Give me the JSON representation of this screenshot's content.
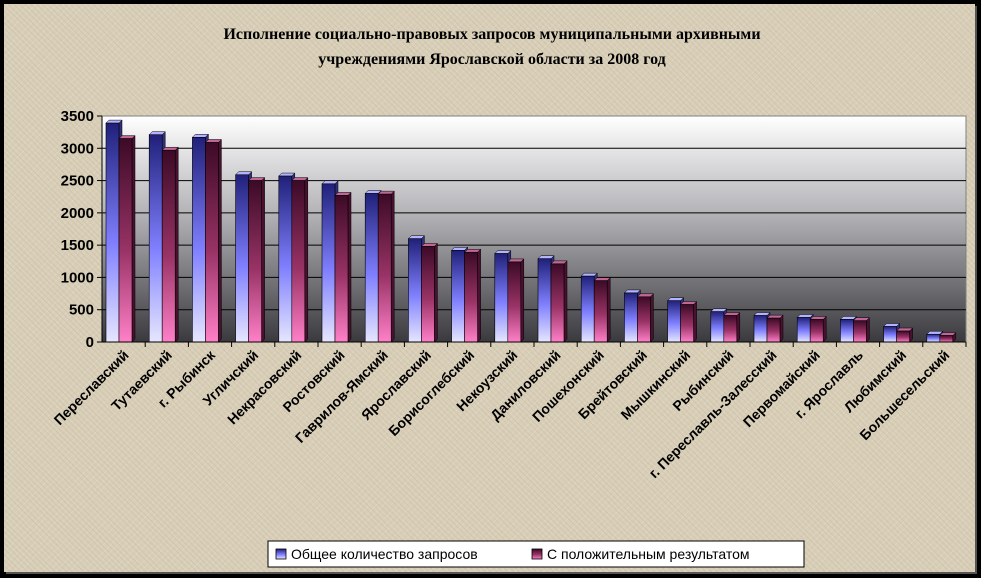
{
  "chart_data": {
    "type": "bar",
    "title_lines": [
      "Исполнение социально-правовых запросов муниципальными архивными",
      "учреждениями Ярославской области за 2008 год"
    ],
    "categories": [
      "Переславский",
      "Тутаевский",
      "г. Рыбинск",
      "Угличский",
      "Некрасовский",
      "Ростовский",
      "Гаврилов-Ямский",
      "Ярославский",
      "Борисоглебский",
      "Некоузский",
      "Даниловский",
      "Пошехонский",
      "Брейтовский",
      "Мышкинский",
      "Рыбинский",
      "г. Переславль-Залесский",
      "Первомайский",
      "г. Ярославль",
      "Любимский",
      "Большесельский"
    ],
    "series": [
      {
        "name": "Общее количество запросов",
        "color": "#8080ff",
        "values": [
          3390,
          3210,
          3170,
          2590,
          2570,
          2450,
          2300,
          1600,
          1420,
          1370,
          1290,
          1020,
          760,
          640,
          470,
          410,
          380,
          350,
          240,
          120
        ]
      },
      {
        "name": "С положительным результатом",
        "color": "#993366",
        "values": [
          3150,
          2970,
          3090,
          2500,
          2500,
          2270,
          2290,
          1480,
          1390,
          1240,
          1210,
          950,
          700,
          580,
          410,
          370,
          350,
          330,
          170,
          100
        ]
      }
    ],
    "ylim": [
      0,
      3500
    ],
    "yticks": [
      "0",
      "500",
      "1000",
      "1500",
      "2000",
      "2500",
      "3000",
      "3500"
    ],
    "grid": true,
    "legend_position": "bottom"
  }
}
